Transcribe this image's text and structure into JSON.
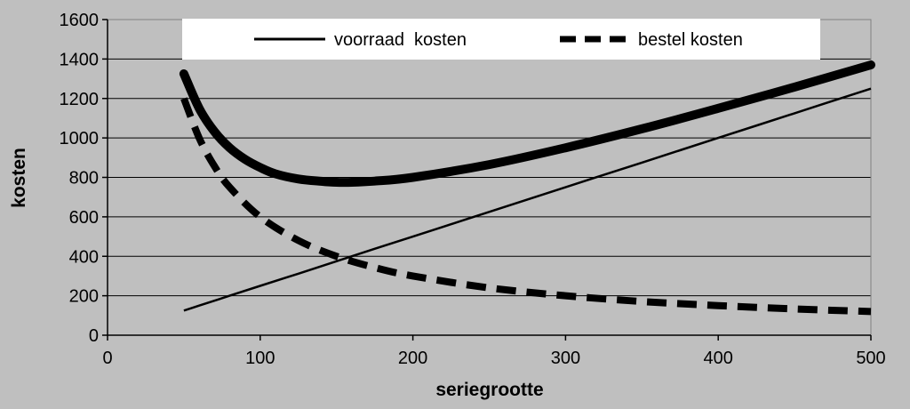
{
  "chart_data": {
    "type": "line",
    "title": "",
    "xlabel": "seriegrootte",
    "ylabel": "kosten",
    "xlim": [
      0,
      500
    ],
    "ylim": [
      0,
      1600
    ],
    "xticks": [
      0,
      100,
      200,
      300,
      400,
      500
    ],
    "yticks": [
      0,
      200,
      400,
      600,
      800,
      1000,
      1200,
      1400,
      1600
    ],
    "grid": "horizontal",
    "legend": "top",
    "colors": {
      "background": "#bfbfbf",
      "plot": "#bfbfbf",
      "legend_box": "#ffffff",
      "line": "#000000"
    },
    "series": [
      {
        "name": "voorraad  kosten",
        "style": "thin-solid",
        "x": [
          50,
          60,
          70,
          80,
          100,
          125,
          150,
          175,
          200,
          250,
          300,
          350,
          400,
          450,
          500
        ],
        "values": [
          125,
          150,
          175,
          200,
          250,
          312,
          375,
          438,
          500,
          625,
          750,
          875,
          1000,
          1125,
          1250
        ]
      },
      {
        "name": "bestel kosten",
        "style": "thick-dashed",
        "x": [
          50,
          60,
          70,
          80,
          100,
          125,
          150,
          175,
          200,
          250,
          300,
          350,
          400,
          450,
          500
        ],
        "values": [
          1200,
          1000,
          857,
          750,
          600,
          480,
          400,
          343,
          300,
          240,
          200,
          171,
          150,
          133,
          120
        ]
      },
      {
        "name": "",
        "style": "very-thick-solid",
        "x": [
          50,
          60,
          70,
          80,
          90,
          100,
          110,
          125,
          140,
          150,
          160,
          175,
          200,
          250,
          300,
          350,
          400,
          450,
          500
        ],
        "values": [
          1325,
          1150,
          1032,
          950,
          892,
          850,
          818,
          792,
          780,
          775,
          775,
          781,
          800,
          865,
          950,
          1046,
          1150,
          1258,
          1370
        ]
      }
    ]
  }
}
